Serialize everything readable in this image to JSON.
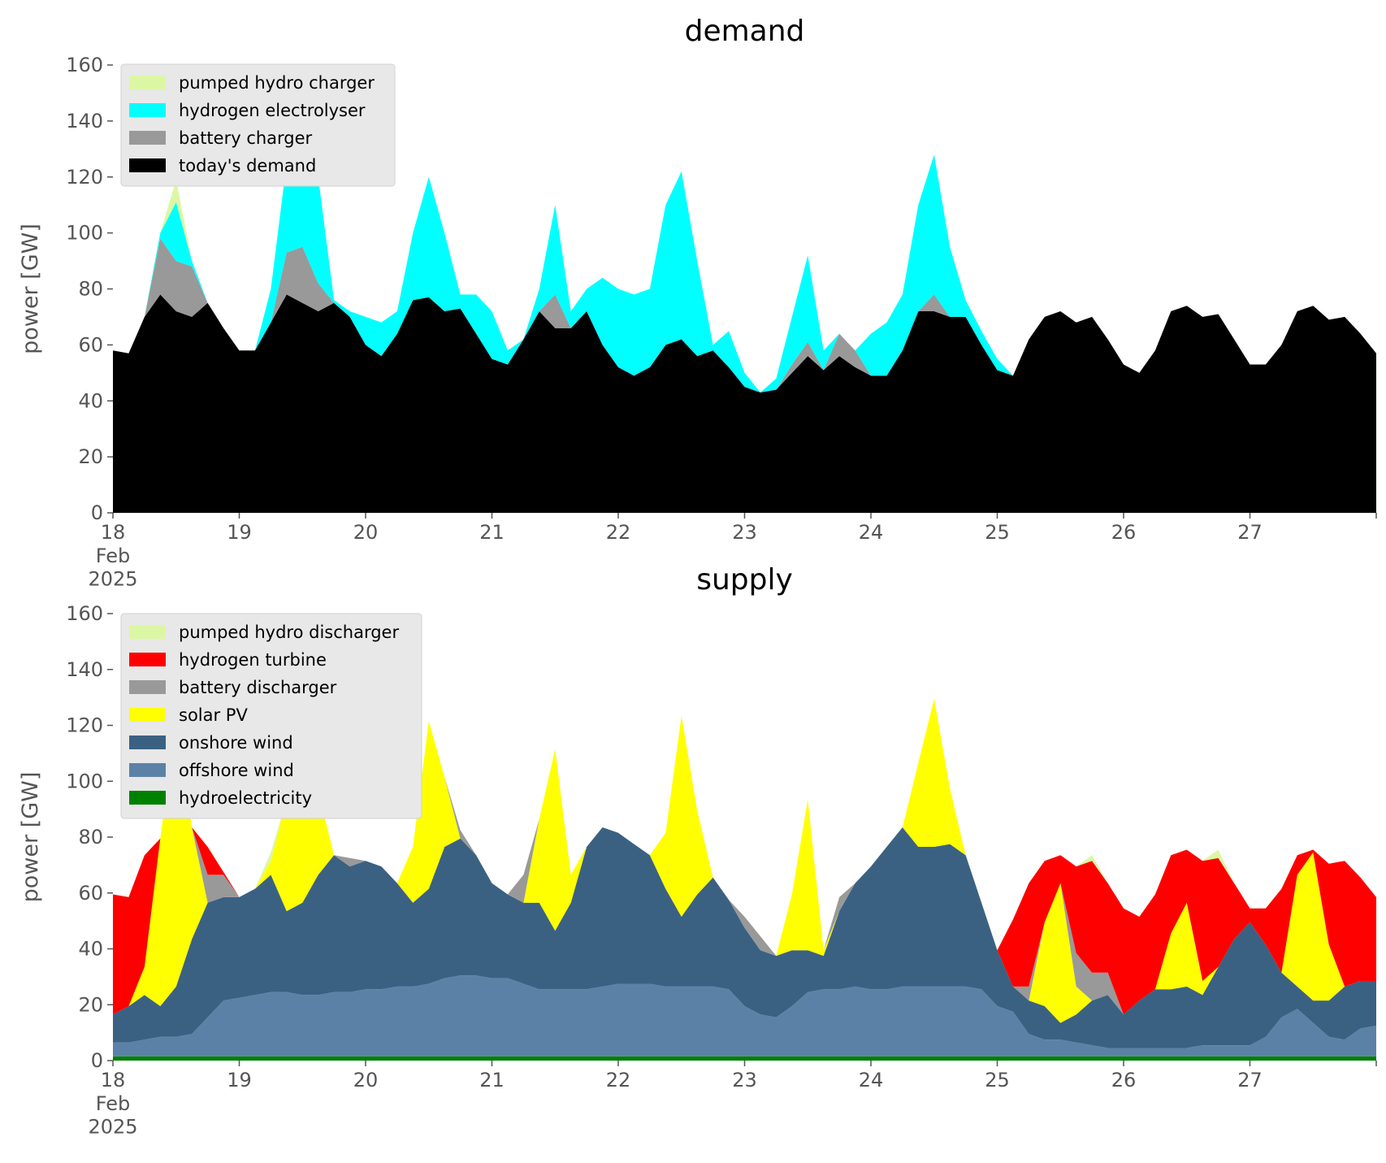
{
  "chart_data": [
    {
      "type": "area",
      "title": "demand",
      "ylabel": "power [GW]",
      "x": [
        18,
        18.125,
        18.25,
        18.375,
        18.5,
        18.625,
        18.75,
        18.875,
        19,
        19.125,
        19.25,
        19.375,
        19.5,
        19.625,
        19.75,
        19.875,
        20,
        20.125,
        20.25,
        20.375,
        20.5,
        20.625,
        20.75,
        20.875,
        21,
        21.125,
        21.25,
        21.375,
        21.5,
        21.625,
        21.75,
        21.875,
        22,
        22.125,
        22.25,
        22.375,
        22.5,
        22.625,
        22.75,
        22.875,
        23,
        23.125,
        23.25,
        23.375,
        23.5,
        23.625,
        23.75,
        23.875,
        24,
        24.125,
        24.25,
        24.375,
        24.5,
        24.625,
        24.75,
        24.875,
        25,
        25.125,
        25.25,
        25.375,
        25.5,
        25.625,
        25.75,
        25.875,
        26,
        26.125,
        26.25,
        26.375,
        26.5,
        26.625,
        26.75,
        26.875,
        27,
        27.125,
        27.25,
        27.375,
        27.5,
        27.625,
        27.75,
        27.875,
        28
      ],
      "xlim": [
        18,
        28
      ],
      "xticks": [
        {
          "value": 18,
          "label": "18\nFeb\n2025"
        },
        19,
        20,
        21,
        22,
        23,
        24,
        25,
        26,
        27
      ],
      "ylim": [
        0,
        160
      ],
      "yticks": [
        0,
        20,
        40,
        60,
        80,
        100,
        120,
        140,
        160
      ],
      "legend": "upper left",
      "series": [
        {
          "name": "pumped hydro charger",
          "color": "#dcf7a4",
          "values": [
            0,
            0,
            0,
            0,
            8,
            0,
            0,
            0,
            0,
            0,
            0,
            0,
            0,
            0,
            0,
            0,
            0,
            0,
            0,
            0,
            0,
            0,
            0,
            0,
            0,
            0,
            0,
            0,
            0,
            0,
            0,
            0,
            0,
            0,
            0,
            0,
            0,
            0,
            0,
            0,
            0,
            0,
            0,
            0,
            0,
            0,
            0,
            0,
            0,
            0,
            0,
            0,
            0,
            0,
            0,
            0,
            0,
            0,
            0,
            0,
            0,
            0,
            0,
            0,
            0,
            0,
            0,
            0,
            0,
            0,
            0,
            0,
            0,
            0,
            0,
            0,
            0,
            0,
            0,
            0,
            0
          ]
        },
        {
          "name": "hydrogen electrolyser",
          "color": "#00ffff",
          "values": [
            0,
            0,
            0,
            2,
            21,
            2,
            0,
            0,
            0,
            0,
            12,
            32,
            55,
            38,
            1,
            2,
            10,
            12,
            8,
            24,
            43,
            28,
            5,
            14,
            17,
            5,
            0,
            8,
            32,
            6,
            8,
            24,
            28,
            29,
            28,
            50,
            60,
            34,
            2,
            13,
            5,
            0,
            4,
            17,
            31,
            7,
            0,
            0,
            15,
            19,
            20,
            38,
            50,
            25,
            6,
            5,
            4,
            0,
            0,
            0,
            0,
            0,
            0,
            0,
            0,
            0,
            0,
            0,
            0,
            0,
            0,
            0,
            0,
            0,
            0,
            0,
            0,
            0,
            0,
            0,
            0
          ]
        },
        {
          "name": "battery charger",
          "color": "#999999",
          "values": [
            0,
            0,
            0,
            20,
            18,
            18,
            0,
            0,
            0,
            0,
            0,
            15,
            20,
            10,
            0,
            0,
            0,
            0,
            0,
            0,
            0,
            0,
            0,
            0,
            0,
            0,
            0,
            0,
            12,
            0,
            0,
            0,
            0,
            0,
            0,
            0,
            0,
            0,
            0,
            0,
            0,
            0,
            0,
            3,
            5,
            0,
            8,
            6,
            0,
            0,
            0,
            0,
            6,
            0,
            0,
            0,
            0,
            0,
            0,
            0,
            0,
            0,
            0,
            0,
            0,
            0,
            0,
            0,
            0,
            0,
            0,
            0,
            0,
            0,
            0,
            0,
            0,
            0,
            0,
            0,
            0
          ]
        },
        {
          "name": "today's demand",
          "color": "#000000",
          "values": [
            58,
            57,
            70,
            78,
            72,
            70,
            75,
            66,
            58,
            58,
            68,
            78,
            75,
            72,
            75,
            70,
            60,
            56,
            64,
            76,
            77,
            72,
            73,
            64,
            55,
            53,
            62,
            72,
            66,
            66,
            72,
            60,
            52,
            49,
            52,
            60,
            62,
            56,
            58,
            52,
            45,
            43,
            44,
            50,
            56,
            51,
            56,
            52,
            49,
            49,
            58,
            72,
            72,
            70,
            70,
            60,
            51,
            49,
            62,
            70,
            72,
            68,
            70,
            62,
            53,
            50,
            58,
            72,
            74,
            70,
            71,
            62,
            53,
            53,
            60,
            72,
            74,
            69,
            70,
            64,
            57
          ]
        }
      ]
    },
    {
      "type": "area",
      "title": "supply",
      "ylabel": "power [GW]",
      "x": [
        18,
        18.125,
        18.25,
        18.375,
        18.5,
        18.625,
        18.75,
        18.875,
        19,
        19.125,
        19.25,
        19.375,
        19.5,
        19.625,
        19.75,
        19.875,
        20,
        20.125,
        20.25,
        20.375,
        20.5,
        20.625,
        20.75,
        20.875,
        21,
        21.125,
        21.25,
        21.375,
        21.5,
        21.625,
        21.75,
        21.875,
        22,
        22.125,
        22.25,
        22.375,
        22.5,
        22.625,
        22.75,
        22.875,
        23,
        23.125,
        23.25,
        23.375,
        23.5,
        23.625,
        23.75,
        23.875,
        24,
        24.125,
        24.25,
        24.375,
        24.5,
        24.625,
        24.75,
        24.875,
        25,
        25.125,
        25.25,
        25.375,
        25.5,
        25.625,
        25.75,
        25.875,
        26,
        26.125,
        26.25,
        26.375,
        26.5,
        26.625,
        26.75,
        26.875,
        27,
        27.125,
        27.25,
        27.375,
        27.5,
        27.625,
        27.75,
        27.875,
        28
      ],
      "xlim": [
        18,
        28
      ],
      "xticks": [
        {
          "value": 18,
          "label": "18\nFeb\n2025"
        },
        19,
        20,
        21,
        22,
        23,
        24,
        25,
        26,
        27
      ],
      "ylim": [
        0,
        160
      ],
      "yticks": [
        0,
        20,
        40,
        60,
        80,
        100,
        120,
        140,
        160
      ],
      "legend": "upper left",
      "series": [
        {
          "name": "pumped hydro discharger",
          "color": "#dcf7a4",
          "values": [
            0,
            0,
            0,
            0,
            0,
            0,
            0,
            0,
            0,
            0,
            3,
            0,
            0,
            0,
            0,
            0,
            0,
            0,
            0,
            0,
            0,
            0,
            0,
            0,
            0,
            0,
            0,
            0,
            0,
            0,
            0,
            0,
            0,
            0,
            0,
            0,
            0,
            0,
            0,
            0,
            0,
            0,
            0,
            0,
            0,
            0,
            0,
            0,
            0,
            0,
            0,
            0,
            0,
            0,
            0,
            0,
            0,
            0,
            0,
            0,
            0,
            0,
            2,
            0,
            0,
            0,
            0,
            0,
            0,
            0,
            3,
            0,
            0,
            0,
            0,
            0,
            0,
            0,
            0,
            0,
            0
          ]
        },
        {
          "name": "hydrogen turbine",
          "color": "#ff0000",
          "values": [
            43,
            39,
            40,
            0,
            0,
            0,
            10,
            1,
            0,
            0,
            0,
            0,
            0,
            0,
            0,
            0,
            0,
            0,
            0,
            0,
            0,
            0,
            0,
            0,
            0,
            0,
            0,
            0,
            0,
            0,
            0,
            0,
            0,
            0,
            0,
            0,
            0,
            0,
            0,
            0,
            0,
            0,
            0,
            0,
            0,
            0,
            0,
            0,
            0,
            0,
            0,
            0,
            0,
            0,
            0,
            0,
            0,
            24,
            37,
            22,
            10,
            31,
            40,
            32,
            38,
            30,
            34,
            28,
            19,
            43,
            39,
            20,
            5,
            13,
            30,
            7,
            1,
            29,
            45,
            37,
            30
          ]
        },
        {
          "name": "battery discharger",
          "color": "#999999",
          "values": [
            0,
            0,
            0,
            0,
            0,
            0,
            10,
            8,
            0,
            0,
            0,
            0,
            0,
            0,
            0,
            3,
            0,
            0,
            0,
            0,
            0,
            0,
            3,
            0,
            0,
            0,
            10,
            0,
            0,
            0,
            0,
            0,
            0,
            0,
            0,
            0,
            0,
            0,
            0,
            0,
            4,
            5,
            0,
            0,
            0,
            0,
            5,
            0,
            0,
            0,
            0,
            0,
            0,
            0,
            0,
            0,
            0,
            0,
            5,
            0,
            0,
            12,
            10,
            8,
            0,
            0,
            0,
            0,
            0,
            0,
            0,
            0,
            0,
            0,
            0,
            0,
            0,
            0,
            0,
            0,
            0
          ]
        },
        {
          "name": "solar PV",
          "color": "#ffff00",
          "values": [
            0,
            0,
            10,
            60,
            95,
            40,
            0,
            0,
            0,
            0,
            5,
            40,
            95,
            30,
            0,
            0,
            0,
            0,
            0,
            20,
            60,
            25,
            0,
            0,
            0,
            0,
            0,
            30,
            65,
            10,
            0,
            0,
            0,
            0,
            0,
            20,
            72,
            30,
            0,
            0,
            0,
            0,
            0,
            20,
            54,
            2,
            0,
            0,
            0,
            0,
            0,
            30,
            53,
            20,
            0,
            0,
            0,
            0,
            0,
            30,
            50,
            10,
            0,
            0,
            0,
            0,
            0,
            20,
            30,
            5,
            0,
            0,
            0,
            0,
            0,
            40,
            53,
            20,
            0,
            0,
            0
          ]
        },
        {
          "name": "onshore wind",
          "color": "#3b6182",
          "values": [
            10,
            13,
            16,
            11,
            18,
            34,
            41,
            37,
            36,
            38,
            42,
            29,
            33,
            43,
            49,
            45,
            46,
            44,
            37,
            30,
            34,
            47,
            49,
            43,
            34,
            30,
            29,
            31,
            21,
            31,
            51,
            57,
            54,
            50,
            46,
            35,
            25,
            33,
            39,
            32,
            28,
            23,
            22,
            20,
            15,
            12,
            28,
            37,
            44,
            51,
            57,
            50,
            50,
            51,
            47,
            31,
            20,
            9,
            12,
            12,
            6,
            10,
            16,
            19,
            12,
            17,
            21,
            21,
            22,
            18,
            28,
            38,
            44,
            33,
            16,
            8,
            8,
            13,
            19,
            17,
            16
          ]
        },
        {
          "name": "offshore wind",
          "color": "#5b82a6",
          "values": [
            5,
            5,
            6,
            7,
            7,
            8,
            14,
            20,
            21,
            22,
            23,
            23,
            22,
            22,
            23,
            23,
            24,
            24,
            25,
            25,
            26,
            28,
            29,
            29,
            28,
            28,
            26,
            24,
            24,
            24,
            24,
            25,
            26,
            26,
            26,
            25,
            25,
            25,
            25,
            24,
            18,
            15,
            14,
            18,
            23,
            24,
            24,
            25,
            24,
            24,
            25,
            25,
            25,
            25,
            25,
            24,
            18,
            16,
            8,
            6,
            6,
            5,
            4,
            3,
            3,
            3,
            3,
            3,
            3,
            4,
            4,
            4,
            4,
            7,
            14,
            17,
            12,
            7,
            6,
            10,
            11
          ]
        },
        {
          "name": "hydroelectricity",
          "color": "#008000",
          "values": [
            1.5,
            1.5,
            1.5,
            1.5,
            1.5,
            1.5,
            1.5,
            1.5,
            1.5,
            1.5,
            1.5,
            1.5,
            1.5,
            1.5,
            1.5,
            1.5,
            1.5,
            1.5,
            1.5,
            1.5,
            1.5,
            1.5,
            1.5,
            1.5,
            1.5,
            1.5,
            1.5,
            1.5,
            1.5,
            1.5,
            1.5,
            1.5,
            1.5,
            1.5,
            1.5,
            1.5,
            1.5,
            1.5,
            1.5,
            1.5,
            1.5,
            1.5,
            1.5,
            1.5,
            1.5,
            1.5,
            1.5,
            1.5,
            1.5,
            1.5,
            1.5,
            1.5,
            1.5,
            1.5,
            1.5,
            1.5,
            1.5,
            1.5,
            1.5,
            1.5,
            1.5,
            1.5,
            1.5,
            1.5,
            1.5,
            1.5,
            1.5,
            1.5,
            1.5,
            1.5,
            1.5,
            1.5,
            1.5,
            1.5,
            1.5,
            1.5,
            1.5,
            1.5,
            1.5,
            1.5,
            1.5
          ]
        }
      ]
    }
  ]
}
